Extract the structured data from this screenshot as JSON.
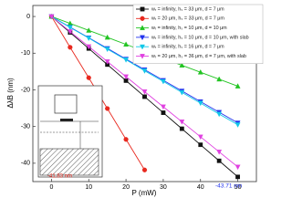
{
  "chart_data": {
    "type": "line",
    "x_label": "P (mW)",
    "y_label": "ΔλB (nm)",
    "x": [
      0,
      5,
      10,
      15,
      20,
      25,
      30,
      35,
      40,
      45,
      50
    ],
    "xlim": [
      -5,
      55
    ],
    "xticks": [
      0,
      10,
      20,
      30,
      40,
      50
    ],
    "ylim": [
      -45,
      3
    ],
    "yticks": [
      0,
      -10,
      -20,
      -30,
      -40
    ],
    "legend": "upper right",
    "series": [
      {
        "name": "wᵣ = infinity, hₛ = 33 μm, d = 7 μm",
        "color": "#111111",
        "marker": "square",
        "values": [
          0,
          -4.37,
          -8.74,
          -13.11,
          -17.48,
          -21.86,
          -26.23,
          -30.6,
          -34.97,
          -39.34,
          -43.71
        ]
      },
      {
        "name": "wᵣ = 20 μm, hₛ = 33 μm, d = 7 μm",
        "color": "#e8281e",
        "marker": "circle",
        "values": [
          0,
          -8.4,
          -16.7,
          -25.1,
          -33.5,
          -41.83,
          null,
          null,
          null,
          null,
          null
        ]
      },
      {
        "name": "wᵣ = infinity, hₛ = 10 μm, d = 10 μm",
        "color": "#22c422",
        "marker": "triangle-up",
        "values": [
          0,
          -1.9,
          -3.8,
          -5.7,
          -7.6,
          -9.5,
          -11.4,
          -13.3,
          -15.2,
          -17.1,
          -19.0
        ]
      },
      {
        "name": "wᵣ = infinity, hₛ = 10 μm, d = 10 μm, with slab",
        "color": "#2233ee",
        "marker": "triangle-down",
        "values": [
          0,
          -2.9,
          -5.8,
          -8.7,
          -11.6,
          -14.5,
          -17.4,
          -20.3,
          -23.2,
          -26.1,
          -29.0
        ]
      },
      {
        "name": "wᵣ = infinity, hₛ = 16 μm, d = 7 μm",
        "color": "#11c8e8",
        "marker": "triangle-down",
        "values": [
          0,
          -3.0,
          -5.9,
          -8.9,
          -11.8,
          -14.8,
          -17.7,
          -20.7,
          -23.6,
          -26.6,
          -29.5
        ]
      },
      {
        "name": "wᵣ = 20 μm, hₛ = 36 μm, d = 7 μm, with slab",
        "color": "#e040e0",
        "marker": "triangle-down",
        "values": [
          0,
          -4.1,
          -8.2,
          -12.3,
          -16.4,
          -20.5,
          -24.6,
          -28.7,
          -32.8,
          -36.9,
          -41.0
        ]
      }
    ],
    "annotations": [
      {
        "text": "-41.83 nm",
        "color": "#e8281e"
      },
      {
        "text": "-43.71 nm",
        "color": "#2233ee"
      }
    ],
    "inset": {
      "labels": [
        "d",
        "hₛ"
      ]
    }
  }
}
